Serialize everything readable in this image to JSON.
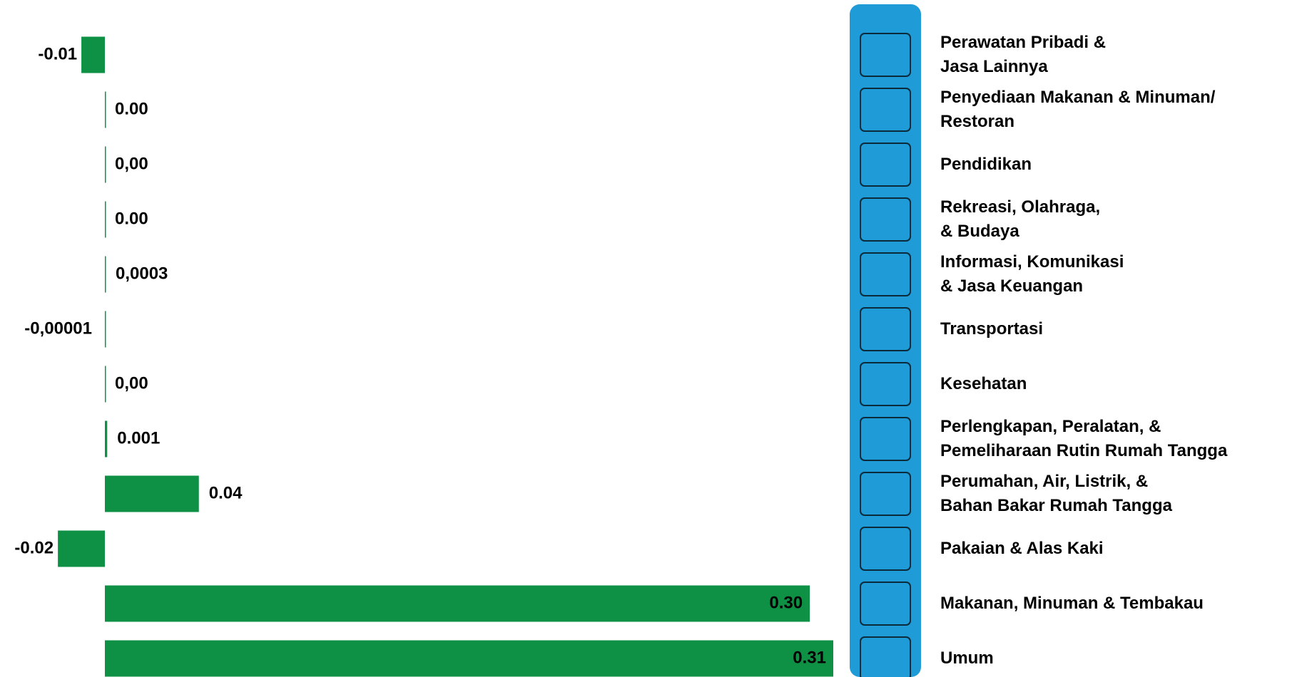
{
  "chart_data": {
    "type": "bar",
    "orientation": "horizontal",
    "categories": [
      "Perawatan Pribadi &\nJasa Lainnya",
      "Penyediaan Makanan & Minuman/\nRestoran",
      "Pendidikan",
      "Rekreasi, Olahraga,\n& Budaya",
      "Informasi, Komunikasi\n& Jasa Keuangan",
      "Transportasi",
      "Kesehatan",
      "Perlengkapan, Peralatan, &\nPemeliharaan Rutin Rumah Tangga",
      "Perumahan, Air, Listrik, &\nBahan Bakar Rumah Tangga",
      "Pakaian & Alas Kaki",
      "Makanan, Minuman & Tembakau",
      "Umum"
    ],
    "values": [
      -0.01,
      0,
      0,
      0,
      0.0003,
      -1e-05,
      0,
      0.001,
      0.04,
      -0.02,
      0.3,
      0.31
    ],
    "value_labels": [
      "-0.01",
      "0.00",
      "0,00",
      "0.00",
      "0,0003",
      "-0,00001",
      "0,00",
      "0.001",
      "0.04",
      "-0.02",
      "0.30",
      "0.31"
    ],
    "color": "#0e9144",
    "panel_color": "#1f9bd7"
  }
}
